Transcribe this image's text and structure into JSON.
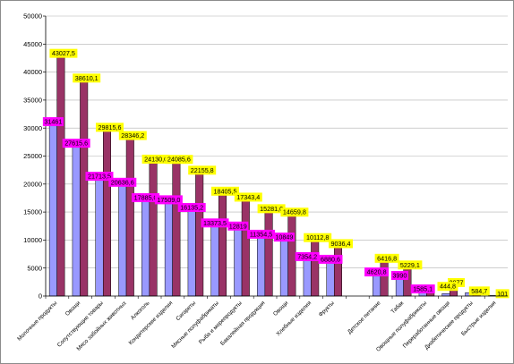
{
  "chart_data": {
    "type": "bar",
    "title": "",
    "xlabel": "",
    "ylabel": "",
    "ylim": [
      0,
      50000
    ],
    "yticks": [
      0,
      5000,
      10000,
      15000,
      20000,
      25000,
      30000,
      35000,
      40000,
      45000,
      50000
    ],
    "grid": true,
    "legend": "none",
    "categories": [
      "Молочные продукты",
      "Овощи",
      "Сопутствующие товары",
      "Мясо забойных животных",
      "Алкоголь",
      "Кондитерские изделия",
      "Сигареты",
      "Мясные полуфабрикаты",
      "Рыба и морепродукты",
      "Бакалейная продукция",
      "Овощи",
      "Хлебные изделия",
      "Фрукты",
      "",
      "Детское питание",
      "Табак",
      "Овощные полуфабрикаты",
      "Переработанные овощи",
      "Диабетические продукты",
      "Быстрые изделия"
    ],
    "series": [
      {
        "name": "",
        "color": "#9999ff",
        "label_color": "#ff00ff",
        "values": [
          31461,
          27615.6,
          21713.5,
          20636.6,
          17885,
          17509,
          16135.2,
          13373.5,
          12819,
          11354.5,
          10849,
          7354.2,
          6880.6,
          null,
          4620.8,
          3990,
          1585.1,
          444.8,
          584.7,
          101
        ],
        "labels": [
          "31461",
          "27615,6",
          "21713,5",
          "20636,6",
          "17885,0",
          "17509,0",
          "16135,2",
          "13373,5",
          "12819",
          "11354,5",
          "10849",
          "7354,2",
          "6880,6",
          "",
          "4620,8",
          "3990",
          "1585,1",
          "",
          "",
          ""
        ]
      },
      {
        "name": "",
        "color": "#993366",
        "label_color": "#ffff00",
        "values": [
          43027.5,
          38610.1,
          29815.6,
          28346.2,
          24130,
          24085.6,
          22155.8,
          18405.5,
          17343.4,
          15281,
          14659.8,
          10112.8,
          9036.4,
          null,
          6416.8,
          5229.1,
          1585.1,
          2077,
          584.7,
          101
        ],
        "labels": [
          "43027,5",
          "38610,1",
          "29815,6",
          "28346,2",
          "24130,0",
          "24085,6",
          "22155,8",
          "18405,5",
          "17343,4",
          "15281,0",
          "14659,8",
          "10112,8",
          "9036,4",
          "",
          "6416,8",
          "5229,1",
          "",
          "2077",
          "584,7",
          "101"
        ]
      }
    ],
    "extra_labels": [
      {
        "category_index": 17,
        "series_index": 0,
        "text": "444,8",
        "color": "#ffff00"
      }
    ]
  }
}
